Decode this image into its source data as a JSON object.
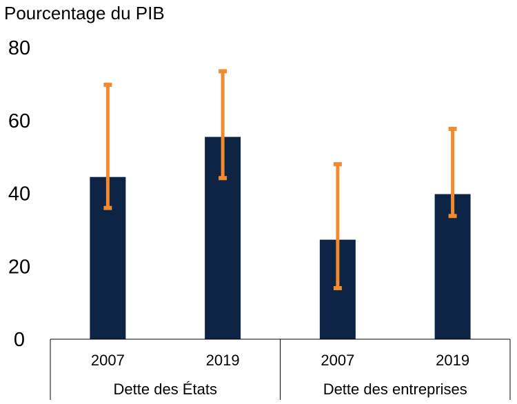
{
  "chart_data": {
    "type": "bar",
    "unit_label": "Pourcentage du PIB",
    "ylim": [
      0,
      80
    ],
    "yticks": [
      0,
      20,
      40,
      60,
      80
    ],
    "grid": false,
    "groups": [
      {
        "label": "Dette des États",
        "categories": [
          "2007",
          "2019"
        ]
      },
      {
        "label": "Dette des entreprises",
        "categories": [
          "2007",
          "2019"
        ]
      }
    ],
    "categories": [
      "2007",
      "2019",
      "2007",
      "2019"
    ],
    "values": [
      44.5,
      55.5,
      27.3,
      39.8
    ],
    "error_low": [
      36,
      44.2,
      14,
      33.8
    ],
    "error_high": [
      69.8,
      73.5,
      48,
      57.7
    ],
    "bar_color": "#0d2445",
    "error_color": "#f28a2e"
  }
}
